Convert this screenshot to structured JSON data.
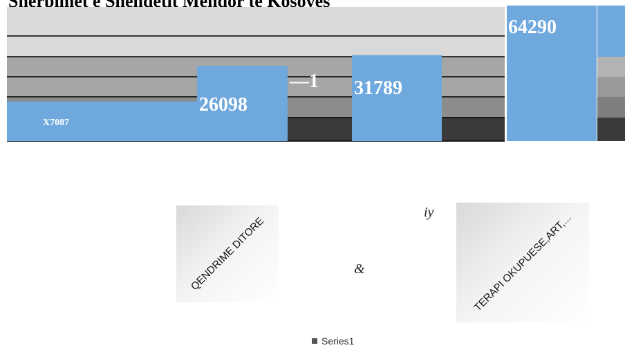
{
  "chart_data": {
    "type": "bar",
    "title": "Shërbimet e Shëndetit Mendor të Kosovës",
    "categories": [
      "",
      "",
      "",
      "",
      "",
      "",
      ""
    ],
    "series": [
      {
        "name": "Series1",
        "values": [
          7087,
          26098,
          null,
          31789,
          null,
          64290,
          null
        ],
        "data_labels": [
          "X7087",
          "26098",
          "—1",
          "31789",
          "",
          "64290",
          ""
        ]
      }
    ],
    "tick_labels_shown": [
      "QENDRIME DITORE",
      "TERAPI OKUPUESE,ART,..."
    ],
    "legend": {
      "entries": [
        "Series1"
      ],
      "placement": "bottom"
    },
    "grid": true,
    "colors": {
      "bar": "#6fa8dc",
      "band_light": "#d9d9d9",
      "band_mid": "#a6a6a6",
      "band_dark": "#8c8c8c",
      "band_darkest": "#3a3a3a"
    }
  },
  "stray_glyphs": [
    "iy",
    "&"
  ]
}
